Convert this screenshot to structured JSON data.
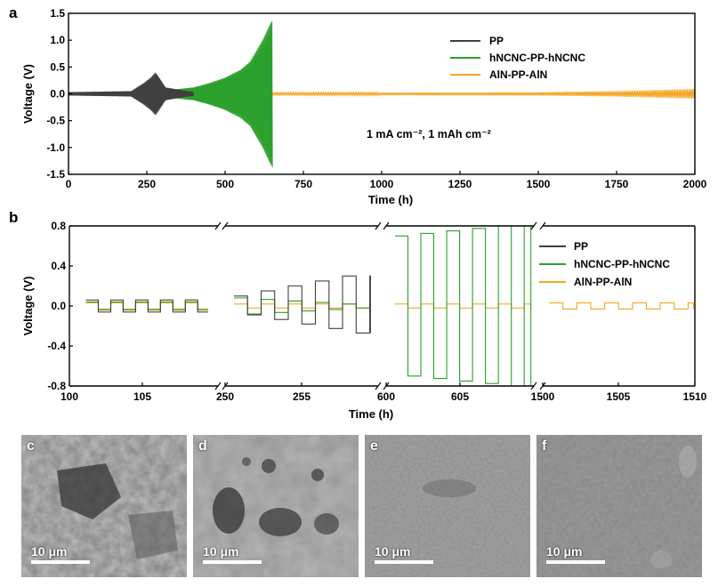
{
  "chart_data": [
    {
      "panel": "a",
      "type": "line",
      "xlabel": "Time (h)",
      "ylabel": "Voltage (V)",
      "xlim": [
        0,
        2000
      ],
      "ylim": [
        -1.5,
        1.5
      ],
      "xticks": [
        "0",
        "250",
        "500",
        "750",
        "1000",
        "1250",
        "1500",
        "1750",
        "2000"
      ],
      "yticks": [
        "1.5",
        "1.0",
        "0.5",
        "0.0",
        "-0.5",
        "-1.0",
        "-1.5"
      ],
      "annotation": "1 mA cm⁻², 1 mAh cm⁻²",
      "legend_position": "top-right",
      "series": [
        {
          "name": "PP",
          "color": "#404040",
          "envelope": [
            [
              0,
              0.03
            ],
            [
              100,
              0.04
            ],
            [
              200,
              0.05
            ],
            [
              240,
              0.2
            ],
            [
              262,
              0.3
            ],
            [
              278,
              0.4
            ],
            [
              290,
              0.3
            ],
            [
              310,
              0.12
            ],
            [
              350,
              0.08
            ],
            [
              380,
              0.05
            ],
            [
              400,
              0.04
            ]
          ]
        },
        {
          "name": "hNCNC-PP-hNCNC",
          "color": "#2ca02c",
          "envelope": [
            [
              0,
              0.03
            ],
            [
              150,
              0.04
            ],
            [
              300,
              0.06
            ],
            [
              400,
              0.12
            ],
            [
              450,
              0.2
            ],
            [
              500,
              0.3
            ],
            [
              550,
              0.45
            ],
            [
              580,
              0.6
            ],
            [
              600,
              0.8
            ],
            [
              620,
              1.0
            ],
            [
              640,
              1.25
            ],
            [
              652,
              1.38
            ]
          ]
        },
        {
          "name": "AlN-PP-AlN",
          "color": "#f5a623",
          "envelope": [
            [
              0,
              0.02
            ],
            [
              500,
              0.02
            ],
            [
              1000,
              0.025
            ],
            [
              1500,
              0.03
            ],
            [
              1750,
              0.05
            ],
            [
              2000,
              0.09
            ]
          ]
        }
      ]
    },
    {
      "panel": "b",
      "type": "line",
      "xlabel": "Time (h)",
      "ylabel": "Voltage (V)",
      "ylim": [
        -0.8,
        0.8
      ],
      "yticks": [
        "0.8",
        "0.4",
        "0.0",
        "-0.4",
        "-0.8"
      ],
      "segments": [
        {
          "xlim": [
            100,
            110
          ],
          "ticks": [
            "100",
            "105"
          ]
        },
        {
          "xlim": [
            250,
            260
          ],
          "ticks": [
            "250",
            "255"
          ]
        },
        {
          "xlim": [
            600,
            610
          ],
          "ticks": [
            "600",
            "605"
          ]
        },
        {
          "xlim": [
            1500,
            1510
          ],
          "ticks": [
            "1500",
            "1505",
            "1510"
          ]
        }
      ],
      "legend_position": "top-right",
      "series": [
        {
          "name": "PP",
          "color": "#404040",
          "amplitude_by_segment": [
            [
              0.06,
              0.06
            ],
            [
              0.1,
              0.3
            ],
            null,
            null
          ]
        },
        {
          "name": "hNCNC-PP-hNCNC",
          "color": "#2ca02c",
          "amplitude_by_segment": [
            [
              0.04,
              0.04
            ],
            [
              0.08,
              0.02
            ],
            [
              0.7,
              0.8
            ],
            null
          ]
        },
        {
          "name": "AlN-PP-AlN",
          "color": "#f5a623",
          "amplitude_by_segment": [
            [
              0.03,
              0.03
            ],
            [
              0.02,
              0.02
            ],
            [
              0.02,
              0.02
            ],
            [
              0.03,
              0.03
            ]
          ]
        }
      ]
    }
  ],
  "panels": {
    "a": {
      "letter": "a"
    },
    "b": {
      "letter": "b"
    }
  },
  "micrographs": [
    {
      "letter": "c",
      "scale_label": "10 μm"
    },
    {
      "letter": "d",
      "scale_label": "10 μm"
    },
    {
      "letter": "e",
      "scale_label": "10 μm"
    },
    {
      "letter": "f",
      "scale_label": "10 μm"
    }
  ]
}
